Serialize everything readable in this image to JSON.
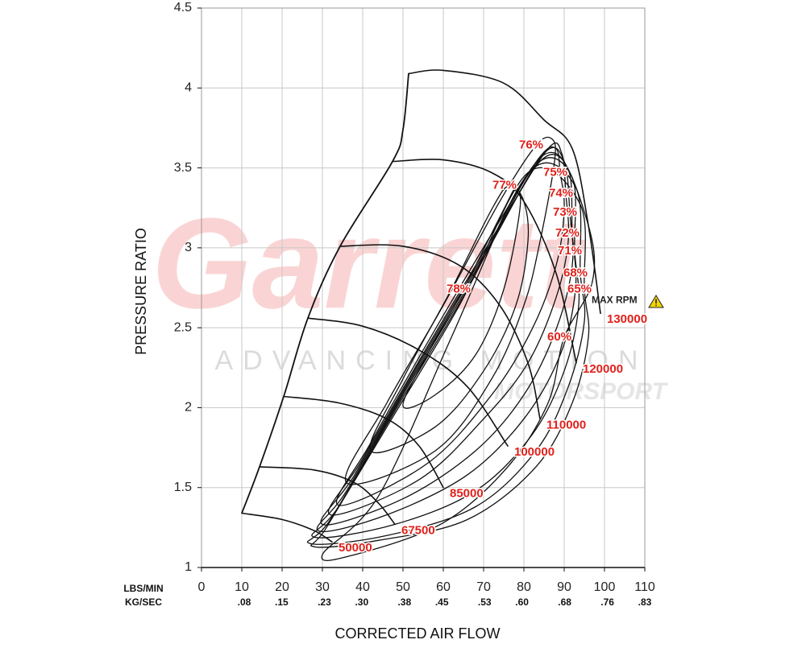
{
  "chart_data": {
    "type": "contour",
    "xlabel": "CORRECTED AIR FLOW",
    "ylabel": "PRESSURE RATIO",
    "x_unit": "LBS/MIN",
    "x2_unit": "KG/SEC",
    "xlim": [
      0,
      110
    ],
    "xticks": [
      0,
      10,
      20,
      30,
      40,
      50,
      60,
      70,
      80,
      90,
      100,
      110
    ],
    "x2lim": [
      0,
      0.83
    ],
    "x2ticks": [
      {
        "value": 0.08,
        "label": ".08"
      },
      {
        "value": 0.15,
        "label": ".15"
      },
      {
        "value": 0.23,
        "label": ".23"
      },
      {
        "value": 0.3,
        "label": ".30"
      },
      {
        "value": 0.38,
        "label": ".38"
      },
      {
        "value": 0.45,
        "label": ".45"
      },
      {
        "value": 0.53,
        "label": ".53"
      },
      {
        "value": 0.6,
        "label": ".60"
      },
      {
        "value": 0.68,
        "label": ".68"
      },
      {
        "value": 0.76,
        "label": ".76"
      },
      {
        "value": 0.83,
        "label": ".83"
      }
    ],
    "ylim": [
      1,
      4.5
    ],
    "yticks": [
      1,
      1.5,
      2,
      2.5,
      3,
      3.5,
      4,
      4.5
    ],
    "grid": true,
    "line_color": "#111111",
    "label_color": "#e0201b",
    "surge_line": {
      "x": [
        10,
        14.4,
        20.4,
        26.4,
        34.4,
        47.4,
        50,
        51.4
      ],
      "y": [
        1.34,
        1.63,
        2.07,
        2.56,
        3.01,
        3.54,
        3.74,
        4.09
      ]
    },
    "speed_lines": [
      {
        "rpm": 50000,
        "x": [
          10,
          20,
          28,
          32.4
        ],
        "y": [
          1.34,
          1.3,
          1.23,
          1.16
        ]
      },
      {
        "rpm": 67500,
        "x": [
          14.4,
          28,
          38,
          44,
          48
        ],
        "y": [
          1.63,
          1.61,
          1.53,
          1.4,
          1.27
        ]
      },
      {
        "rpm": 85000,
        "x": [
          20.4,
          34,
          46,
          54,
          60
        ],
        "y": [
          2.07,
          2.03,
          1.93,
          1.76,
          1.5
        ]
      },
      {
        "rpm": 100000,
        "x": [
          26.4,
          40,
          54,
          66,
          76
        ],
        "y": [
          2.56,
          2.51,
          2.36,
          2.13,
          1.76
        ]
      },
      {
        "rpm": 110000,
        "x": [
          34.4,
          50,
          64,
          74,
          81,
          84
        ],
        "y": [
          3.01,
          3.01,
          2.89,
          2.64,
          2.28,
          1.93
        ]
      },
      {
        "rpm": 120000,
        "x": [
          47.4,
          60,
          72,
          80,
          88,
          93
        ],
        "y": [
          3.54,
          3.55,
          3.47,
          3.29,
          2.84,
          2.28
        ]
      },
      {
        "rpm": 130000,
        "x": [
          51.4,
          60,
          75,
          85,
          92,
          96,
          99
        ],
        "y": [
          4.09,
          4.11,
          4.03,
          3.8,
          3.62,
          3.14,
          2.59
        ]
      }
    ],
    "max_speed_note": "MAX RPM",
    "efficiency_islands": [
      {
        "efficiency": {
          "value": 78,
          "label": "78%"
        },
        "x": [
          65,
          75,
          78,
          79,
          75,
          68,
          58,
          50,
          56
        ],
        "y": [
          2.74,
          3.24,
          3.37,
          3.24,
          2.74,
          2.33,
          2.08,
          2.01,
          2.33
        ]
      },
      {
        "efficiency": {
          "value": 77,
          "label": "77%"
        },
        "x": [
          76.4,
          80,
          81,
          78,
          70,
          58,
          42,
          50,
          62,
          72
        ],
        "y": [
          3.39,
          3.29,
          3.04,
          2.64,
          2.23,
          1.88,
          1.73,
          2.18,
          2.74,
          3.24
        ]
      },
      {
        "efficiency": {
          "value": 76,
          "label": "76%"
        },
        "x": [
          83,
          87,
          87.6,
          84,
          80,
          72,
          58,
          36,
          46,
          60,
          74
        ],
        "y": [
          3.64,
          3.68,
          3.54,
          3.04,
          2.64,
          2.18,
          1.73,
          1.53,
          2.03,
          2.64,
          3.29
        ]
      },
      {
        "efficiency": {
          "value": 75,
          "label": "75%"
        },
        "x": [
          89,
          90,
          88,
          82,
          72,
          56,
          34,
          42,
          58,
          74,
          84,
          88
        ],
        "y": [
          3.47,
          3.24,
          2.89,
          2.49,
          2.08,
          1.65,
          1.39,
          1.78,
          2.49,
          3.17,
          3.57,
          3.62
        ]
      },
      {
        "efficiency": {
          "value": 74,
          "label": "74%"
        },
        "x": [
          90.4,
          91,
          88,
          81,
          70,
          54,
          32,
          40,
          56,
          74,
          86,
          89.4
        ],
        "y": [
          3.34,
          3.04,
          2.69,
          2.28,
          1.93,
          1.55,
          1.33,
          1.68,
          2.38,
          3.14,
          3.62,
          3.59
        ]
      },
      {
        "efficiency": {
          "value": 73,
          "label": "73%"
        },
        "x": [
          91.4,
          92,
          88,
          80,
          68,
          50,
          30,
          38,
          54,
          72,
          85,
          90
        ],
        "y": [
          3.22,
          2.89,
          2.49,
          2.08,
          1.73,
          1.43,
          1.27,
          1.58,
          2.28,
          3.04,
          3.59,
          3.54
        ]
      },
      {
        "efficiency": {
          "value": 72,
          "label": "72%"
        },
        "x": [
          92,
          92.8,
          89,
          80,
          66,
          46,
          29,
          36,
          52,
          70,
          84,
          91
        ],
        "y": [
          3.09,
          2.74,
          2.33,
          1.93,
          1.58,
          1.33,
          1.23,
          1.48,
          2.18,
          2.94,
          3.54,
          3.49
        ]
      },
      {
        "efficiency": {
          "value": 71,
          "label": "71%"
        },
        "x": [
          92.6,
          93.6,
          90,
          82,
          68,
          48,
          28,
          34,
          50,
          68,
          83,
          92
        ],
        "y": [
          2.98,
          2.64,
          2.23,
          1.83,
          1.48,
          1.27,
          1.19,
          1.38,
          2.08,
          2.84,
          3.52,
          3.44
        ]
      },
      {
        "efficiency": {
          "value": 68,
          "label": "68%"
        },
        "x": [
          94,
          95,
          91,
          83,
          68,
          46,
          27,
          32,
          48,
          66,
          82,
          93
        ],
        "y": [
          2.84,
          2.54,
          2.13,
          1.73,
          1.38,
          1.2,
          1.15,
          1.3,
          1.98,
          2.74,
          3.49,
          3.37
        ]
      },
      {
        "efficiency": {
          "value": 65,
          "label": "65%"
        },
        "x": [
          95,
          96,
          92,
          83,
          66,
          44,
          28,
          31,
          46,
          64,
          81,
          94
        ],
        "y": [
          2.74,
          2.44,
          2.03,
          1.63,
          1.3,
          1.17,
          1.13,
          1.25,
          1.88,
          2.64,
          3.47,
          3.27
        ]
      },
      {
        "efficiency": {
          "value": 60,
          "label": "60%"
        },
        "x": [
          90,
          86,
          76,
          60,
          38,
          30,
          44,
          62,
          78,
          88,
          96,
          97
        ],
        "y": [
          2.44,
          2.03,
          1.63,
          1.28,
          1.08,
          1.08,
          1.45,
          2.44,
          3.34,
          3.59,
          3.14,
          2.79
        ]
      }
    ],
    "watermark": {
      "brand": "Garrett",
      "tagline": "ADVANCING MOTION",
      "division": "MOTORSPORT"
    }
  }
}
